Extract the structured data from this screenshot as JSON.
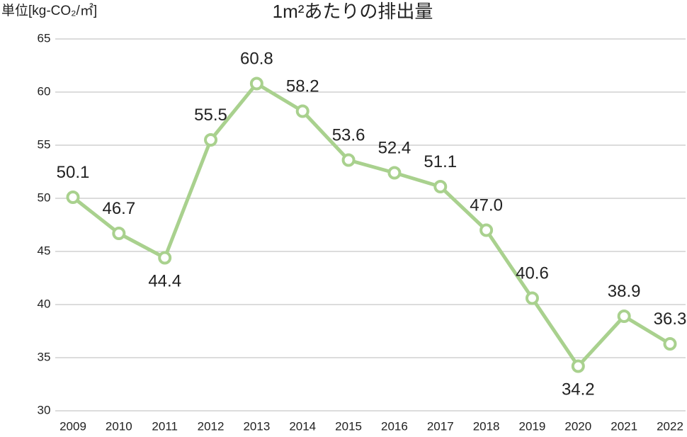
{
  "chart_data": {
    "type": "line",
    "title": "1m²あたりの排出量",
    "y_label": "単位[kg-CO₂/㎡]",
    "categories": [
      "2009",
      "2010",
      "2011",
      "2012",
      "2013",
      "2014",
      "2015",
      "2016",
      "2017",
      "2018",
      "2019",
      "2020",
      "2021",
      "2022"
    ],
    "series": [
      {
        "color": "#a9d18e",
        "values": [
          50.1,
          46.7,
          44.4,
          55.5,
          60.8,
          58.2,
          53.6,
          52.4,
          51.1,
          47.0,
          40.6,
          34.2,
          38.9,
          36.3
        ],
        "value_labels": [
          "50.1",
          "46.7",
          "44.4",
          "55.5",
          "60.8",
          "58.2",
          "53.6",
          "52.4",
          "51.1",
          "47.0",
          "40.6",
          "34.2",
          "38.9",
          "36.3"
        ]
      }
    ],
    "ylim": [
      30,
      65
    ],
    "yticks": [
      30,
      35,
      40,
      45,
      50,
      55,
      60,
      65
    ],
    "grid": true
  }
}
